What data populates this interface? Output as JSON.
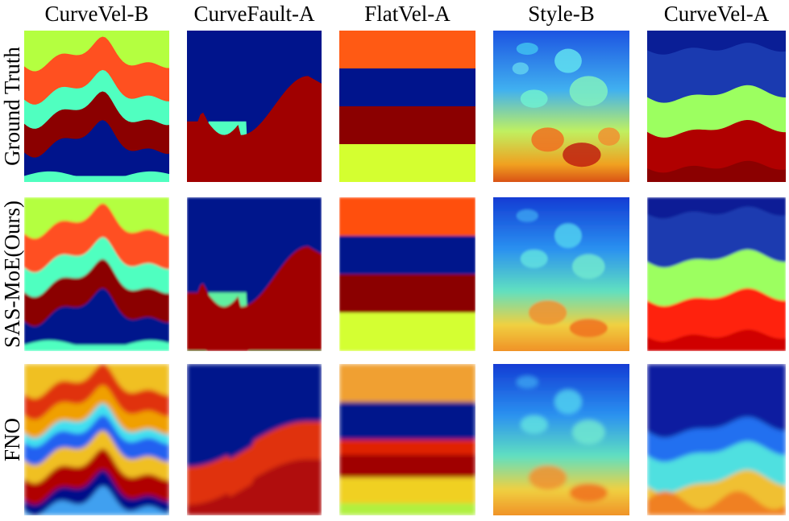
{
  "columns": [
    "CurveVel-B",
    "CurveFault-A",
    "FlatVel-A",
    "Style-B",
    "CurveVel-A"
  ],
  "rows": [
    "Ground Truth",
    "SAS-MoE(Ours)",
    "FNO"
  ]
}
